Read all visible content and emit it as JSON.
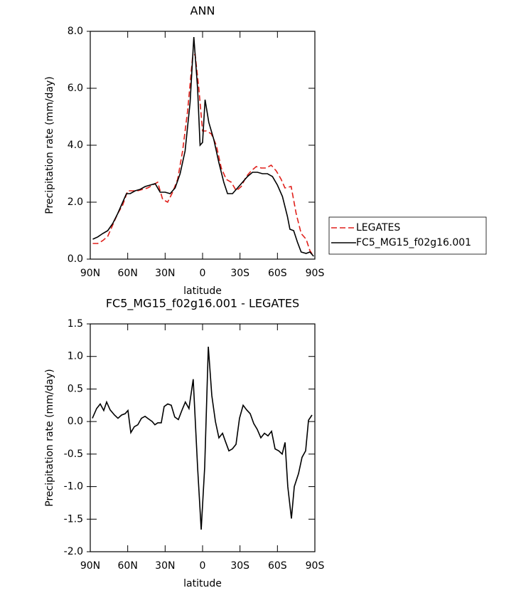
{
  "chart_data": [
    {
      "type": "line",
      "title": "ANN",
      "xlabel": "latitude",
      "ylabel": "Precipitation rate (mm/day)",
      "xlim": [
        90,
        -90
      ],
      "xticks": [
        {
          "value": 90,
          "label": "90N"
        },
        {
          "value": 60,
          "label": "60N"
        },
        {
          "value": 30,
          "label": "30N"
        },
        0,
        {
          "value": -30,
          "label": "30S"
        },
        {
          "value": -60,
          "label": "60S"
        },
        {
          "value": -90,
          "label": "90S"
        }
      ],
      "ylim": [
        0,
        8
      ],
      "yticks": [
        {
          "value": 0,
          "label": "0.0"
        },
        {
          "value": 2,
          "label": "2.0"
        },
        {
          "value": 4,
          "label": "4.0"
        },
        {
          "value": 6,
          "label": "6.0"
        },
        {
          "value": 8,
          "label": "8.0"
        }
      ],
      "legend": "outside-right",
      "series": [
        {
          "name": "LEGATES",
          "color": "#e0201b",
          "linestyle": "dashed",
          "x": [
            88,
            84,
            80,
            76,
            72,
            68,
            64,
            60,
            56,
            52,
            48,
            44,
            40,
            36,
            32,
            28,
            24,
            20,
            16,
            12,
            8,
            6,
            3,
            0,
            -3,
            -7,
            -11,
            -15,
            -19,
            -23,
            -27,
            -31,
            -35,
            -39,
            -43,
            -47,
            -51,
            -55,
            -59,
            -63,
            -66,
            -71,
            -75,
            -79,
            -83,
            -86,
            -89
          ],
          "values": [
            0.55,
            0.55,
            0.65,
            0.8,
            1.2,
            1.6,
            1.9,
            2.4,
            2.4,
            2.4,
            2.45,
            2.5,
            2.6,
            2.7,
            2.1,
            2.0,
            2.35,
            2.8,
            3.8,
            5.2,
            7.1,
            7.2,
            6.0,
            4.5,
            4.5,
            4.4,
            4.0,
            3.2,
            2.8,
            2.7,
            2.4,
            2.55,
            2.9,
            3.1,
            3.25,
            3.2,
            3.2,
            3.3,
            3.1,
            2.8,
            2.5,
            2.55,
            1.6,
            0.9,
            0.7,
            0.3,
            0.1
          ]
        },
        {
          "name": "FC5_MG15_f02g16.001",
          "color": "#000000",
          "linestyle": "solid",
          "x": [
            88,
            84,
            80,
            76,
            72,
            68,
            64,
            61,
            58,
            54,
            50,
            46,
            42,
            38,
            34,
            30,
            26,
            22,
            18,
            14,
            10,
            7,
            4,
            2,
            0,
            -2,
            -5,
            -9,
            -13,
            -17,
            -20,
            -24,
            -28,
            -32,
            -36,
            -40,
            -44,
            -48,
            -52,
            -56,
            -60,
            -64,
            -68,
            -70,
            -73,
            -76,
            -79,
            -83,
            -86,
            -89
          ],
          "values": [
            0.7,
            0.78,
            0.9,
            1.0,
            1.25,
            1.6,
            2.0,
            2.3,
            2.3,
            2.4,
            2.45,
            2.55,
            2.6,
            2.65,
            2.35,
            2.35,
            2.3,
            2.5,
            3.0,
            3.8,
            5.5,
            7.8,
            6.0,
            4.0,
            4.1,
            5.6,
            4.8,
            4.2,
            3.4,
            2.7,
            2.3,
            2.3,
            2.5,
            2.7,
            2.9,
            3.05,
            3.05,
            3.0,
            3.0,
            2.9,
            2.6,
            2.2,
            1.5,
            1.05,
            1.0,
            0.6,
            0.25,
            0.2,
            0.25,
            0.1
          ]
        }
      ]
    },
    {
      "type": "line",
      "title": "FC5_MG15_f02g16.001 - LEGATES",
      "xlabel": "latitude",
      "ylabel": "Precipitation rate (mm/day)",
      "xlim": [
        90,
        -90
      ],
      "xticks": [
        {
          "value": 90,
          "label": "90N"
        },
        {
          "value": 60,
          "label": "60N"
        },
        {
          "value": 30,
          "label": "30N"
        },
        0,
        {
          "value": -30,
          "label": "30S"
        },
        {
          "value": -60,
          "label": "60S"
        },
        {
          "value": -90,
          "label": "90S"
        }
      ],
      "ylim": [
        -2,
        1.5
      ],
      "yticks": [
        {
          "value": -2,
          "label": "-2.0"
        },
        -1.5,
        {
          "value": -1,
          "label": "-1.0"
        },
        -0.5,
        {
          "value": 0,
          "label": "0.0"
        },
        0.5,
        {
          "value": 1,
          "label": "1.0"
        },
        1.5
      ],
      "series": [
        {
          "color": "#000000",
          "linestyle": "solid",
          "x": [
            88.3,
            84.9,
            82.0,
            79.2,
            76.9,
            74.1,
            70.6,
            67.8,
            64.9,
            62.1,
            59.8,
            57.5,
            54.7,
            51.9,
            49.0,
            46.1,
            43.3,
            40.4,
            38.2,
            35.9,
            33.1,
            30.8,
            27.9,
            25.1,
            22.3,
            19.4,
            16.6,
            13.8,
            10.9,
            7.5,
            4.0,
            1.1,
            -1.7,
            -4.6,
            -7.4,
            -10.3,
            -13.1,
            -16.0,
            -18.2,
            -21.1,
            -23.9,
            -26.8,
            -29.6,
            -32.5,
            -35.3,
            -38.2,
            -41.0,
            -43.8,
            -46.7,
            -49.6,
            -52.4,
            -55.3,
            -58.1,
            -61.0,
            -63.8,
            -66.1,
            -68.3,
            -71.2,
            -73.5,
            -76.9,
            -79.7,
            -82.6,
            -84.9,
            -87.7
          ],
          "values": [
            0.05,
            0.2,
            0.27,
            0.17,
            0.3,
            0.18,
            0.1,
            0.05,
            0.1,
            0.12,
            0.17,
            -0.17,
            -0.08,
            -0.05,
            0.05,
            0.08,
            0.04,
            0.0,
            -0.05,
            -0.02,
            -0.02,
            0.23,
            0.27,
            0.25,
            0.07,
            0.03,
            0.17,
            0.3,
            0.2,
            0.65,
            -0.7,
            -1.66,
            -0.7,
            1.15,
            0.4,
            0.0,
            -0.25,
            -0.18,
            -0.3,
            -0.45,
            -0.42,
            -0.35,
            0.05,
            0.25,
            0.18,
            0.12,
            -0.03,
            -0.12,
            -0.25,
            -0.18,
            -0.22,
            -0.15,
            -0.42,
            -0.45,
            -0.5,
            -0.32,
            -1.0,
            -1.49,
            -1.0,
            -0.8,
            -0.55,
            -0.45,
            0.02,
            0.1
          ]
        }
      ]
    }
  ]
}
